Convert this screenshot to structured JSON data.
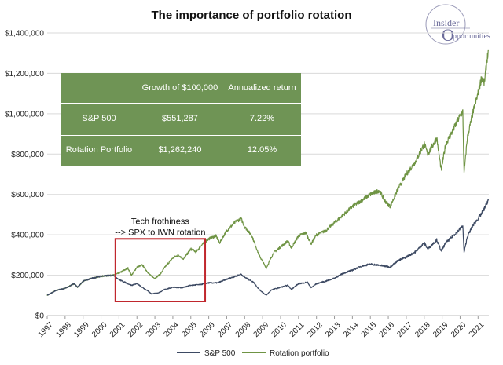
{
  "header": {
    "title": "The importance of portfolio rotation"
  },
  "logo": {
    "line1": "Insider",
    "line2": "pportunities",
    "initial": "O"
  },
  "table": {
    "columns": [
      "",
      "Growth of $100,000",
      "Annualized return"
    ],
    "rows": [
      {
        "label": "S&P 500",
        "growth": "$551,287",
        "return": "7.22%"
      },
      {
        "label": "Rotation Portfolio",
        "growth": "$1,262,240",
        "return": "12.05%"
      }
    ]
  },
  "annotation": {
    "line1": "Tech frothiness",
    "line2": "--> SPX to IWN rotation",
    "x_range": [
      2000.8,
      2005.8
    ],
    "y_range": [
      70000,
      380000
    ]
  },
  "colors": {
    "sp500": "#3d4a63",
    "rotation": "#6f9444",
    "highlight_box": "#c0272d",
    "table_bg": "#6f9455"
  },
  "chart_data": {
    "type": "line",
    "title": "The importance of portfolio rotation",
    "xlabel": "",
    "ylabel": "",
    "xlim": [
      1997,
      2021.6
    ],
    "ylim": [
      0,
      1400000
    ],
    "x_ticks": [
      1997,
      1998,
      1999,
      2000,
      2001,
      2002,
      2003,
      2004,
      2005,
      2006,
      2007,
      2008,
      2009,
      2010,
      2011,
      2012,
      2013,
      2014,
      2015,
      2016,
      2017,
      2018,
      2019,
      2020,
      2021
    ],
    "y_ticks": [
      0,
      200000,
      400000,
      600000,
      800000,
      1000000,
      1200000,
      1400000
    ],
    "y_tick_labels": [
      "$0",
      "$200,000",
      "$400,000",
      "$600,000",
      "$800,000",
      "$1,000,000",
      "$1,200,000",
      "$1,400,000"
    ],
    "grid": "horizontal",
    "legend": "bottom",
    "series": [
      {
        "name": "S&P 500",
        "points": [
          [
            1997.0,
            100000
          ],
          [
            1997.5,
            125000
          ],
          [
            1998.0,
            135000
          ],
          [
            1998.5,
            158000
          ],
          [
            1998.7,
            140000
          ],
          [
            1999.0,
            170000
          ],
          [
            1999.5,
            185000
          ],
          [
            2000.0,
            195000
          ],
          [
            2000.7,
            200000
          ],
          [
            2001.0,
            178000
          ],
          [
            2001.7,
            150000
          ],
          [
            2002.0,
            158000
          ],
          [
            2002.6,
            122000
          ],
          [
            2002.8,
            108000
          ],
          [
            2003.2,
            112000
          ],
          [
            2003.5,
            128000
          ],
          [
            2004.0,
            140000
          ],
          [
            2004.5,
            138000
          ],
          [
            2005.0,
            150000
          ],
          [
            2005.5,
            153000
          ],
          [
            2006.0,
            162000
          ],
          [
            2006.5,
            162000
          ],
          [
            2007.0,
            180000
          ],
          [
            2007.5,
            195000
          ],
          [
            2007.8,
            205000
          ],
          [
            2008.0,
            190000
          ],
          [
            2008.5,
            165000
          ],
          [
            2008.8,
            130000
          ],
          [
            2009.2,
            100000
          ],
          [
            2009.5,
            128000
          ],
          [
            2010.0,
            140000
          ],
          [
            2010.4,
            150000
          ],
          [
            2010.6,
            130000
          ],
          [
            2011.0,
            158000
          ],
          [
            2011.5,
            165000
          ],
          [
            2011.7,
            138000
          ],
          [
            2012.0,
            158000
          ],
          [
            2012.5,
            170000
          ],
          [
            2013.0,
            185000
          ],
          [
            2013.5,
            210000
          ],
          [
            2014.0,
            225000
          ],
          [
            2014.5,
            245000
          ],
          [
            2015.0,
            255000
          ],
          [
            2015.6,
            248000
          ],
          [
            2016.1,
            240000
          ],
          [
            2016.5,
            270000
          ],
          [
            2017.0,
            290000
          ],
          [
            2017.5,
            315000
          ],
          [
            2018.0,
            360000
          ],
          [
            2018.2,
            330000
          ],
          [
            2018.7,
            375000
          ],
          [
            2018.95,
            320000
          ],
          [
            2019.2,
            360000
          ],
          [
            2019.5,
            385000
          ],
          [
            2020.0,
            430000
          ],
          [
            2020.15,
            445000
          ],
          [
            2020.22,
            310000
          ],
          [
            2020.4,
            390000
          ],
          [
            2020.7,
            445000
          ],
          [
            2021.0,
            480000
          ],
          [
            2021.3,
            520000
          ],
          [
            2021.5,
            560000
          ],
          [
            2021.58,
            575000
          ]
        ]
      },
      {
        "name": "Rotation portfolio",
        "points": [
          [
            1997.0,
            100000
          ],
          [
            1997.5,
            125000
          ],
          [
            1998.0,
            135000
          ],
          [
            1998.5,
            158000
          ],
          [
            1998.7,
            140000
          ],
          [
            1999.0,
            170000
          ],
          [
            1999.5,
            185000
          ],
          [
            2000.0,
            195000
          ],
          [
            2000.7,
            200000
          ],
          [
            2001.0,
            210000
          ],
          [
            2001.5,
            235000
          ],
          [
            2001.7,
            200000
          ],
          [
            2002.0,
            240000
          ],
          [
            2002.3,
            250000
          ],
          [
            2002.6,
            215000
          ],
          [
            2002.8,
            195000
          ],
          [
            2003.0,
            185000
          ],
          [
            2003.3,
            205000
          ],
          [
            2003.6,
            245000
          ],
          [
            2004.0,
            285000
          ],
          [
            2004.3,
            300000
          ],
          [
            2004.6,
            280000
          ],
          [
            2005.0,
            330000
          ],
          [
            2005.3,
            315000
          ],
          [
            2005.6,
            350000
          ],
          [
            2006.0,
            380000
          ],
          [
            2006.4,
            395000
          ],
          [
            2006.6,
            360000
          ],
          [
            2007.0,
            420000
          ],
          [
            2007.5,
            465000
          ],
          [
            2007.8,
            480000
          ],
          [
            2008.0,
            440000
          ],
          [
            2008.4,
            395000
          ],
          [
            2008.8,
            300000
          ],
          [
            2009.2,
            235000
          ],
          [
            2009.6,
            310000
          ],
          [
            2010.0,
            340000
          ],
          [
            2010.4,
            370000
          ],
          [
            2010.6,
            335000
          ],
          [
            2011.0,
            395000
          ],
          [
            2011.4,
            410000
          ],
          [
            2011.7,
            355000
          ],
          [
            2012.0,
            400000
          ],
          [
            2012.5,
            420000
          ],
          [
            2013.0,
            460000
          ],
          [
            2013.5,
            500000
          ],
          [
            2014.0,
            540000
          ],
          [
            2014.5,
            570000
          ],
          [
            2015.0,
            600000
          ],
          [
            2015.5,
            620000
          ],
          [
            2015.8,
            570000
          ],
          [
            2016.1,
            540000
          ],
          [
            2016.5,
            620000
          ],
          [
            2017.0,
            700000
          ],
          [
            2017.5,
            760000
          ],
          [
            2018.0,
            850000
          ],
          [
            2018.2,
            800000
          ],
          [
            2018.7,
            880000
          ],
          [
            2018.95,
            720000
          ],
          [
            2019.2,
            850000
          ],
          [
            2019.5,
            900000
          ],
          [
            2020.0,
            990000
          ],
          [
            2020.15,
            1010000
          ],
          [
            2020.22,
            700000
          ],
          [
            2020.4,
            880000
          ],
          [
            2020.7,
            1000000
          ],
          [
            2021.0,
            1100000
          ],
          [
            2021.2,
            1180000
          ],
          [
            2021.35,
            1150000
          ],
          [
            2021.5,
            1270000
          ],
          [
            2021.58,
            1310000
          ]
        ]
      }
    ]
  }
}
